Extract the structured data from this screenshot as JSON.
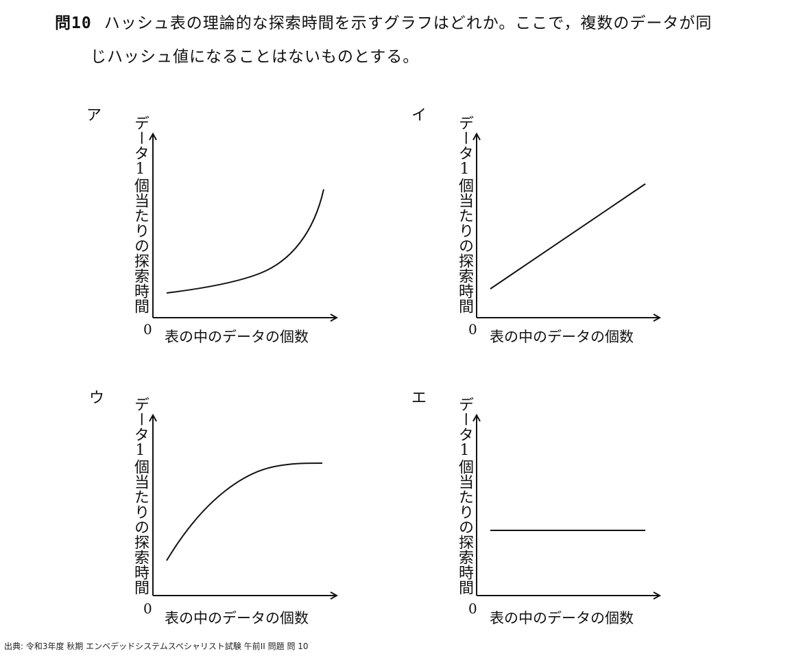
{
  "question": {
    "number": "問10",
    "line1": "ハッシュ表の理論的な探索時間を示すグラフはどれか。ここで，複数のデータが同",
    "line2": "じハッシュ値になることはないものとする。"
  },
  "graphs": [
    {
      "label": "ア",
      "ylabel": "データ1個当たりの探索時間",
      "origin": "0",
      "xlabel": "表の中のデータの個数"
    },
    {
      "label": "イ",
      "ylabel": "データ1個当たりの探索時間",
      "origin": "0",
      "xlabel": "表の中のデータの個数"
    },
    {
      "label": "ウ",
      "ylabel": "データ1個当たりの探索時間",
      "origin": "0",
      "xlabel": "表の中のデータの個数"
    },
    {
      "label": "エ",
      "ylabel": "データ1個当たりの探索時間",
      "origin": "0",
      "xlabel": "表の中のデータの個数"
    }
  ],
  "chart_data": [
    {
      "type": "line",
      "label": "ア",
      "shape": "exponential-increase",
      "xlabel": "表の中のデータの個数",
      "ylabel": "データ1個当たりの探索時間",
      "origin": "0"
    },
    {
      "type": "line",
      "label": "イ",
      "shape": "linear-increase",
      "xlabel": "表の中のデータの個数",
      "ylabel": "データ1個当たりの探索時間",
      "origin": "0"
    },
    {
      "type": "line",
      "label": "ウ",
      "shape": "saturating-increase",
      "xlabel": "表の中のデータの個数",
      "ylabel": "データ1個当たりの探索時間",
      "origin": "0"
    },
    {
      "type": "line",
      "label": "エ",
      "shape": "constant",
      "xlabel": "表の中のデータの個数",
      "ylabel": "データ1個当たりの探索時間",
      "origin": "0"
    }
  ],
  "source": "出典: 令和3年度 秋期 エンベデッドシステムスペシャリスト試験 午前II 問題 問 10"
}
